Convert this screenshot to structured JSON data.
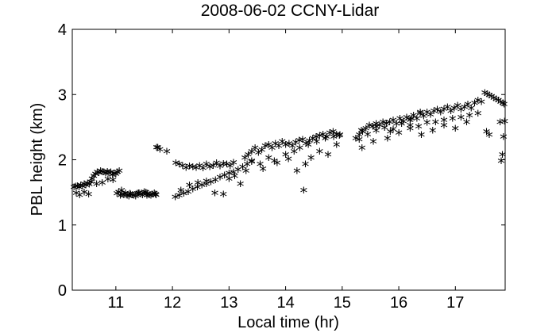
{
  "chart_data": {
    "type": "scatter",
    "title": "2008-06-02 CCNY-Lidar",
    "xlabel": "Local time (hr)",
    "ylabel": "PBL height (km)",
    "xlim": [
      10.23,
      17.88
    ],
    "ylim": [
      0,
      4
    ],
    "xticks": [
      11,
      12,
      13,
      14,
      15,
      16,
      17
    ],
    "yticks": [
      0,
      1,
      2,
      3,
      4
    ],
    "marker": "*",
    "grid": false,
    "series": [
      {
        "x": [
          10.26,
          10.29,
          10.32,
          10.35,
          10.38,
          10.41,
          10.44,
          10.47,
          10.5,
          10.53,
          10.56,
          10.58,
          10.61,
          10.64,
          10.67,
          10.7,
          10.73,
          10.76,
          10.79,
          10.82,
          10.85,
          10.88,
          10.91,
          10.94,
          10.97,
          11.0,
          11.03,
          11.06,
          10.3,
          10.36,
          10.44,
          10.52,
          10.66,
          10.76,
          10.86,
          10.95,
          11.02,
          11.05,
          11.08,
          11.11,
          11.14,
          11.17,
          11.2,
          11.23,
          11.26,
          11.29,
          11.32,
          11.35,
          11.38,
          11.41,
          11.44,
          11.47,
          11.5,
          11.53,
          11.56,
          11.59,
          11.62,
          11.65,
          11.68,
          11.71,
          11.74,
          11.1,
          11.25,
          11.4,
          11.55,
          11.7,
          11.72,
          11.78,
          11.9,
          12.06,
          12.12,
          12.18,
          12.24,
          12.3,
          12.36,
          12.42,
          12.48,
          12.54,
          12.6,
          12.66,
          12.72,
          12.78,
          12.84,
          12.9,
          12.96,
          13.02,
          13.08,
          12.05,
          12.12,
          12.2,
          12.28,
          12.36,
          12.44,
          12.52,
          12.6,
          12.68,
          12.76,
          12.84,
          12.92,
          13.0,
          13.08,
          13.16,
          13.24,
          13.32,
          13.4,
          12.15,
          12.3,
          12.45,
          12.6,
          12.75,
          12.9,
          13.0,
          13.1,
          13.2,
          13.3,
          13.28,
          13.34,
          13.4,
          13.46,
          13.52,
          13.58,
          13.64,
          13.7,
          13.76,
          13.82,
          13.88,
          13.94,
          14.0,
          14.06,
          14.12,
          14.18,
          14.24,
          14.3,
          14.36,
          14.42,
          14.48,
          14.54,
          14.6,
          14.66,
          14.72,
          14.78,
          14.84,
          14.9,
          14.96,
          13.4,
          13.55,
          13.7,
          13.85,
          14.0,
          14.15,
          14.25,
          14.4,
          14.55,
          14.7,
          14.85,
          14.95,
          13.6,
          13.8,
          14.05,
          14.2,
          14.35,
          14.45,
          14.6,
          14.75,
          14.9,
          14.32,
          15.24,
          15.3,
          15.36,
          15.42,
          15.48,
          15.54,
          15.6,
          15.66,
          15.72,
          15.78,
          15.84,
          15.9,
          15.96,
          16.02,
          16.08,
          16.14,
          16.2,
          16.26,
          16.32,
          16.38,
          16.44,
          16.5,
          16.56,
          16.62,
          16.68,
          16.74,
          16.8,
          16.86,
          16.92,
          16.98,
          17.04,
          17.1,
          17.16,
          17.22,
          17.28,
          17.34,
          17.4,
          17.46,
          15.3,
          15.45,
          15.6,
          15.75,
          15.9,
          16.05,
          16.2,
          16.35,
          16.5,
          16.65,
          16.8,
          16.95,
          17.1,
          17.25,
          17.4,
          15.35,
          15.55,
          15.8,
          16.0,
          16.2,
          16.4,
          16.6,
          16.8,
          17.0,
          17.2,
          15.34,
          15.6,
          15.85,
          16.22,
          16.38,
          17.52,
          17.56,
          17.6,
          17.64,
          17.68,
          17.72,
          17.76,
          17.8,
          17.84,
          17.86,
          17.87,
          17.85,
          17.83,
          17.81,
          17.79,
          17.55,
          17.6
        ],
        "y": [
          1.55,
          1.56,
          1.57,
          1.55,
          1.58,
          1.56,
          1.6,
          1.58,
          1.61,
          1.59,
          1.63,
          1.68,
          1.72,
          1.75,
          1.78,
          1.77,
          1.8,
          1.79,
          1.78,
          1.76,
          1.79,
          1.77,
          1.78,
          1.74,
          1.76,
          1.75,
          1.78,
          1.8,
          1.46,
          1.43,
          1.47,
          1.44,
          1.6,
          1.62,
          1.67,
          1.66,
          1.45,
          1.47,
          1.42,
          1.44,
          1.43,
          1.46,
          1.42,
          1.41,
          1.44,
          1.43,
          1.42,
          1.41,
          1.45,
          1.46,
          1.44,
          1.43,
          1.48,
          1.47,
          1.45,
          1.43,
          1.42,
          1.44,
          1.46,
          1.43,
          2.16,
          1.5,
          1.45,
          1.46,
          1.42,
          1.44,
          2.16,
          2.13,
          2.1,
          1.92,
          1.9,
          1.88,
          1.85,
          1.87,
          1.86,
          1.85,
          1.88,
          1.84,
          1.9,
          1.86,
          1.88,
          1.92,
          1.87,
          1.91,
          1.9,
          1.88,
          1.93,
          1.4,
          1.42,
          1.45,
          1.48,
          1.52,
          1.55,
          1.58,
          1.6,
          1.63,
          1.66,
          1.7,
          1.73,
          1.76,
          1.78,
          1.82,
          1.86,
          1.9,
          1.94,
          1.5,
          1.58,
          1.62,
          1.64,
          1.46,
          1.44,
          1.68,
          1.72,
          1.6,
          1.8,
          2.0,
          2.05,
          2.1,
          2.15,
          2.08,
          2.12,
          2.18,
          2.2,
          2.15,
          2.22,
          2.18,
          2.25,
          2.2,
          2.22,
          2.18,
          2.24,
          2.27,
          2.28,
          2.22,
          2.26,
          2.3,
          2.32,
          2.34,
          2.36,
          2.32,
          2.38,
          2.4,
          2.36,
          2.35,
          1.95,
          1.9,
          2.0,
          1.92,
          2.05,
          2.1,
          2.15,
          2.2,
          2.25,
          2.3,
          2.32,
          2.34,
          1.83,
          1.95,
          1.98,
          1.8,
          1.9,
          2.0,
          2.1,
          2.05,
          2.2,
          1.5,
          2.3,
          2.35,
          2.4,
          2.45,
          2.5,
          2.48,
          2.52,
          2.5,
          2.55,
          2.53,
          2.55,
          2.58,
          2.52,
          2.6,
          2.56,
          2.62,
          2.58,
          2.65,
          2.6,
          2.68,
          2.64,
          2.7,
          2.66,
          2.72,
          2.74,
          2.7,
          2.75,
          2.78,
          2.72,
          2.76,
          2.8,
          2.74,
          2.78,
          2.82,
          2.76,
          2.84,
          2.88,
          2.86,
          2.28,
          2.36,
          2.42,
          2.46,
          2.44,
          2.52,
          2.5,
          2.48,
          2.54,
          2.55,
          2.58,
          2.6,
          2.62,
          2.65,
          2.68,
          2.15,
          2.25,
          2.3,
          2.38,
          2.45,
          2.35,
          2.42,
          2.5,
          2.45,
          2.55,
          2.42,
          2.48,
          2.4,
          2.6,
          2.7,
          3.0,
          2.98,
          2.96,
          2.94,
          2.92,
          2.9,
          2.88,
          2.86,
          2.84,
          2.82,
          2.56,
          2.32,
          2.05,
          1.95,
          2.55,
          2.4,
          2.35
        ]
      }
    ]
  }
}
